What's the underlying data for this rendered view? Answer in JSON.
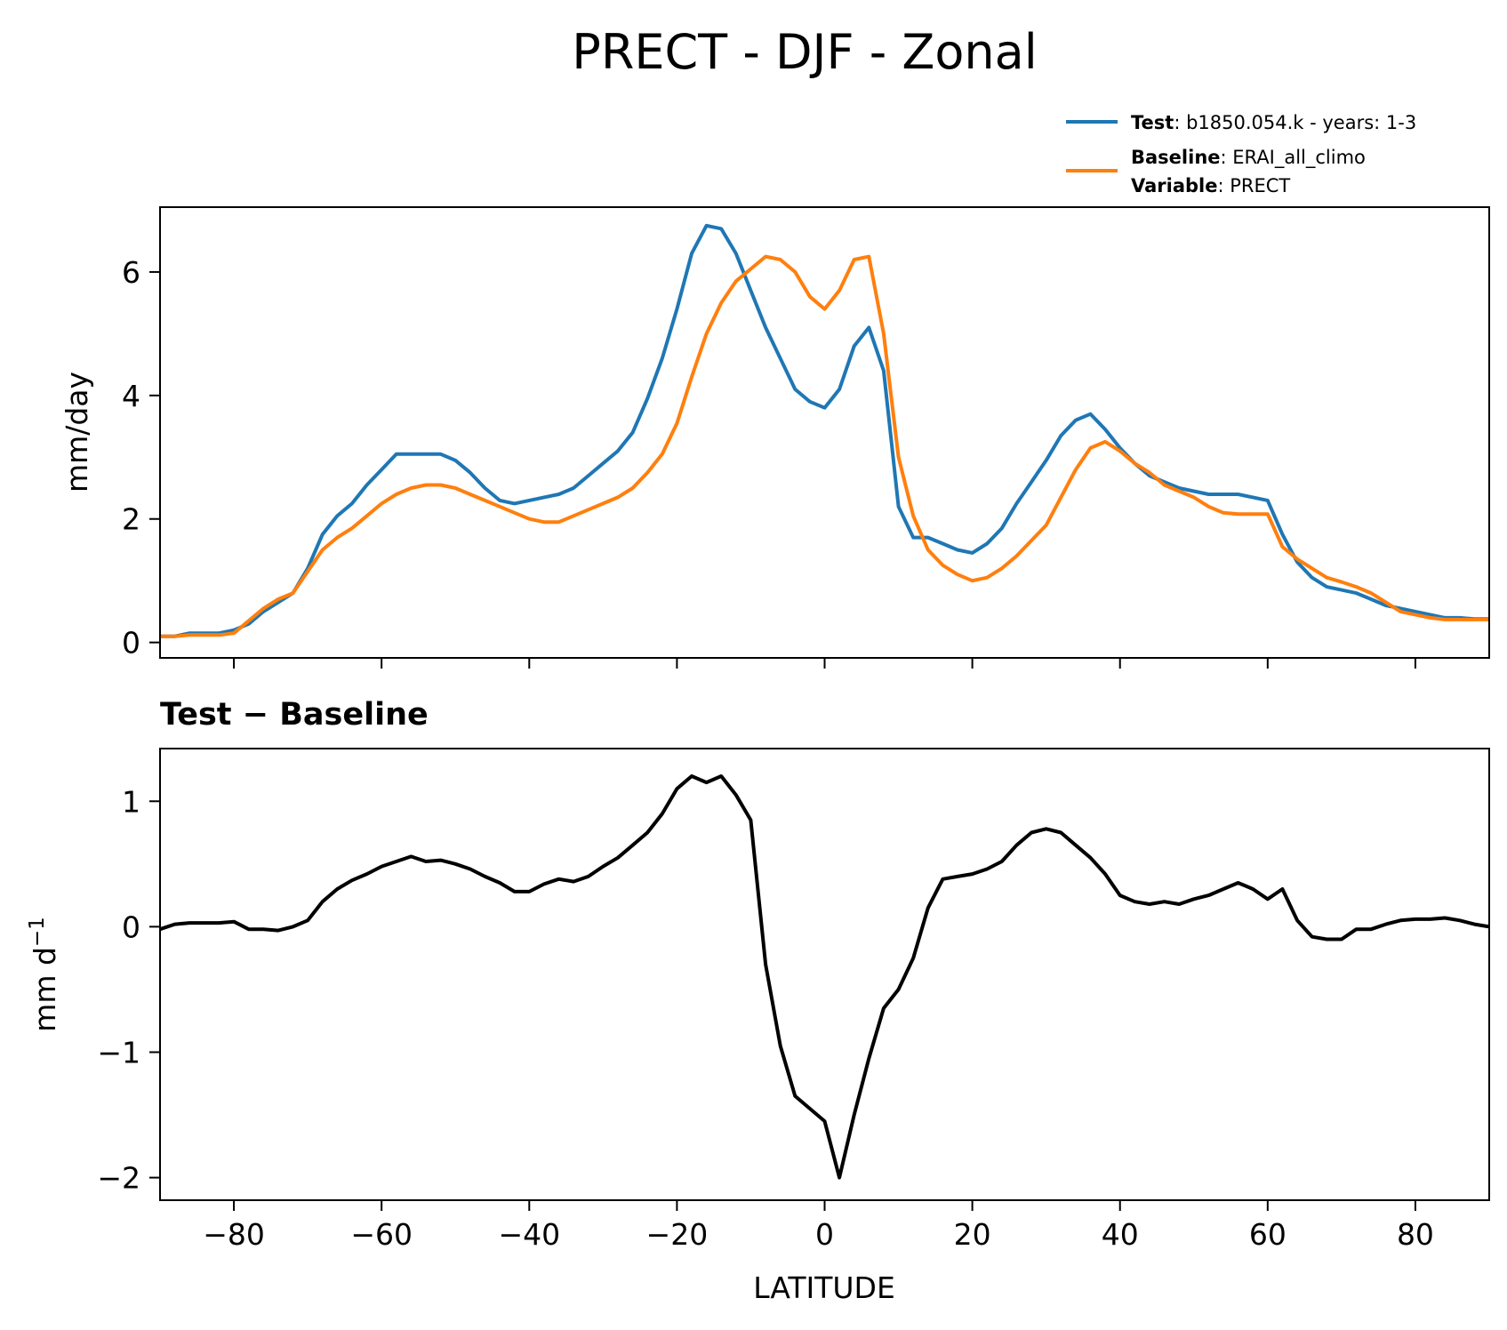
{
  "title": "PRECT - DJF - Zonal",
  "legend": {
    "test_key": "Test",
    "test_value": ": b1850.054.k - years: 1-3",
    "baseline_key": "Baseline",
    "baseline_value": ": ERAI_all_climo",
    "variable_key": "Variable",
    "variable_value": ": PRECT"
  },
  "top_ylabel": "mm/day",
  "bottom_title": "Test − Baseline",
  "bottom_ylabel_main": "mm d",
  "bottom_ylabel_sup": "−1",
  "xlabel": "LATITUDE",
  "colors": {
    "test": "#1f77b4",
    "baseline": "#ff7f0e",
    "diff": "#000000"
  },
  "chart_data": [
    {
      "type": "line",
      "xlim": [
        -90,
        90
      ],
      "ylim": [
        -0.25,
        7.05
      ],
      "yticks": [
        0,
        2,
        4,
        6
      ],
      "ytick_labels": [
        "0",
        "2",
        "4",
        "6"
      ],
      "xticks": [
        -80,
        -60,
        -40,
        -20,
        0,
        20,
        40,
        60,
        80
      ],
      "xtick_labels_visible": false,
      "ylabel": "mm/day",
      "series": [
        {
          "name": "Test",
          "color": "#1f77b4",
          "x": [
            -90,
            -88,
            -86,
            -84,
            -82,
            -80,
            -78,
            -76,
            -74,
            -72,
            -70,
            -68,
            -66,
            -64,
            -62,
            -60,
            -58,
            -56,
            -54,
            -52,
            -50,
            -48,
            -46,
            -44,
            -42,
            -40,
            -38,
            -36,
            -34,
            -32,
            -30,
            -28,
            -26,
            -24,
            -22,
            -20,
            -18,
            -16,
            -14,
            -12,
            -10,
            -8,
            -6,
            -4,
            -2,
            0,
            2,
            4,
            6,
            8,
            10,
            12,
            14,
            16,
            18,
            20,
            22,
            24,
            26,
            28,
            30,
            32,
            34,
            36,
            38,
            40,
            42,
            44,
            46,
            48,
            50,
            52,
            54,
            56,
            58,
            60,
            62,
            64,
            66,
            68,
            70,
            72,
            74,
            76,
            78,
            80,
            82,
            84,
            86,
            88,
            90
          ],
          "y": [
            0.1,
            0.1,
            0.15,
            0.15,
            0.15,
            0.2,
            0.3,
            0.5,
            0.65,
            0.8,
            1.2,
            1.75,
            2.05,
            2.25,
            2.55,
            2.8,
            3.05,
            3.05,
            3.05,
            3.05,
            2.95,
            2.75,
            2.5,
            2.3,
            2.25,
            2.3,
            2.35,
            2.4,
            2.5,
            2.7,
            2.9,
            3.1,
            3.4,
            3.95,
            4.6,
            5.4,
            6.3,
            6.75,
            6.7,
            6.3,
            5.7,
            5.1,
            4.6,
            4.1,
            3.9,
            3.8,
            4.1,
            4.8,
            5.1,
            4.4,
            2.2,
            1.7,
            1.7,
            1.6,
            1.5,
            1.45,
            1.6,
            1.85,
            2.25,
            2.6,
            2.95,
            3.35,
            3.6,
            3.7,
            3.45,
            3.15,
            2.9,
            2.7,
            2.6,
            2.5,
            2.45,
            2.4,
            2.4,
            2.4,
            2.35,
            2.3,
            1.75,
            1.3,
            1.05,
            0.9,
            0.85,
            0.8,
            0.7,
            0.6,
            0.55,
            0.5,
            0.45,
            0.4,
            0.4,
            0.38,
            0.38
          ]
        },
        {
          "name": "Baseline",
          "color": "#ff7f0e",
          "x": [
            -90,
            -88,
            -86,
            -84,
            -82,
            -80,
            -78,
            -76,
            -74,
            -72,
            -70,
            -68,
            -66,
            -64,
            -62,
            -60,
            -58,
            -56,
            -54,
            -52,
            -50,
            -48,
            -46,
            -44,
            -42,
            -40,
            -38,
            -36,
            -34,
            -32,
            -30,
            -28,
            -26,
            -24,
            -22,
            -20,
            -18,
            -16,
            -14,
            -12,
            -10,
            -8,
            -6,
            -4,
            -2,
            0,
            2,
            4,
            6,
            8,
            10,
            12,
            14,
            16,
            18,
            20,
            22,
            24,
            26,
            28,
            30,
            32,
            34,
            36,
            38,
            40,
            42,
            44,
            46,
            48,
            50,
            52,
            54,
            56,
            58,
            60,
            62,
            64,
            66,
            68,
            70,
            72,
            74,
            76,
            78,
            80,
            82,
            84,
            86,
            88,
            90
          ],
          "y": [
            0.1,
            0.1,
            0.12,
            0.12,
            0.12,
            0.15,
            0.35,
            0.55,
            0.7,
            0.8,
            1.15,
            1.5,
            1.7,
            1.85,
            2.05,
            2.25,
            2.4,
            2.5,
            2.55,
            2.55,
            2.5,
            2.4,
            2.3,
            2.2,
            2.1,
            2.0,
            1.95,
            1.95,
            2.05,
            2.15,
            2.25,
            2.35,
            2.5,
            2.75,
            3.05,
            3.55,
            4.3,
            5.0,
            5.5,
            5.85,
            6.05,
            6.25,
            6.2,
            6.0,
            5.6,
            5.4,
            5.7,
            6.2,
            6.25,
            5.0,
            3.0,
            2.05,
            1.5,
            1.25,
            1.1,
            1.0,
            1.05,
            1.2,
            1.4,
            1.65,
            1.9,
            2.35,
            2.8,
            3.15,
            3.25,
            3.1,
            2.9,
            2.75,
            2.55,
            2.45,
            2.35,
            2.2,
            2.1,
            2.08,
            2.08,
            2.08,
            1.55,
            1.35,
            1.2,
            1.05,
            0.98,
            0.9,
            0.8,
            0.65,
            0.5,
            0.45,
            0.4,
            0.37,
            0.37,
            0.37,
            0.37
          ]
        }
      ]
    },
    {
      "type": "line",
      "title": "Test − Baseline",
      "xlim": [
        -90,
        90
      ],
      "ylim": [
        -2.18,
        1.42
      ],
      "yticks": [
        -2,
        -1,
        0,
        1
      ],
      "ytick_labels": [
        "−2",
        "−1",
        "0",
        "1"
      ],
      "xticks": [
        -80,
        -60,
        -40,
        -20,
        0,
        20,
        40,
        60,
        80
      ],
      "xtick_labels": [
        "−80",
        "−60",
        "−40",
        "−20",
        "0",
        "20",
        "40",
        "60",
        "80"
      ],
      "xlabel": "LATITUDE",
      "ylabel": "mm d⁻¹",
      "series": [
        {
          "name": "Test − Baseline",
          "color": "#000000",
          "x": [
            -90,
            -88,
            -86,
            -84,
            -82,
            -80,
            -78,
            -76,
            -74,
            -72,
            -70,
            -68,
            -66,
            -64,
            -62,
            -60,
            -58,
            -56,
            -54,
            -52,
            -50,
            -48,
            -46,
            -44,
            -42,
            -40,
            -38,
            -36,
            -34,
            -32,
            -30,
            -28,
            -26,
            -24,
            -22,
            -20,
            -18,
            -16,
            -14,
            -12,
            -10,
            -8,
            -6,
            -4,
            -2,
            0,
            2,
            4,
            6,
            8,
            10,
            12,
            14,
            16,
            18,
            20,
            22,
            24,
            26,
            28,
            30,
            32,
            34,
            36,
            38,
            40,
            42,
            44,
            46,
            48,
            50,
            52,
            54,
            56,
            58,
            60,
            62,
            64,
            66,
            68,
            70,
            72,
            74,
            76,
            78,
            80,
            82,
            84,
            86,
            88,
            90
          ],
          "y": [
            -0.02,
            0.02,
            0.03,
            0.03,
            0.03,
            0.04,
            -0.02,
            -0.02,
            -0.03,
            0.0,
            0.05,
            0.2,
            0.3,
            0.37,
            0.42,
            0.48,
            0.52,
            0.56,
            0.52,
            0.53,
            0.5,
            0.46,
            0.4,
            0.35,
            0.28,
            0.28,
            0.34,
            0.38,
            0.36,
            0.4,
            0.48,
            0.55,
            0.65,
            0.75,
            0.9,
            1.1,
            1.2,
            1.15,
            1.2,
            1.05,
            0.85,
            -0.3,
            -0.95,
            -1.35,
            -1.45,
            -1.55,
            -2.0,
            -1.5,
            -1.05,
            -0.65,
            -0.5,
            -0.25,
            0.15,
            0.38,
            0.4,
            0.42,
            0.46,
            0.52,
            0.65,
            0.75,
            0.78,
            0.75,
            0.65,
            0.55,
            0.42,
            0.25,
            0.2,
            0.18,
            0.2,
            0.18,
            0.22,
            0.25,
            0.3,
            0.35,
            0.3,
            0.22,
            0.3,
            0.05,
            -0.08,
            -0.1,
            -0.1,
            -0.02,
            -0.02,
            0.02,
            0.05,
            0.06,
            0.06,
            0.07,
            0.05,
            0.02,
            0.0
          ]
        }
      ]
    }
  ]
}
